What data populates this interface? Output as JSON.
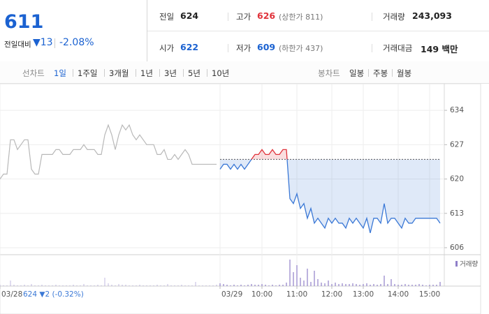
{
  "header": {
    "price": "611",
    "change_label": "전일대비",
    "change": "▼13",
    "change_pct": "-2.08%",
    "color": "#1b62d1",
    "stats": [
      {
        "label": "전일",
        "value": "624"
      },
      {
        "label": "고가",
        "value": "626",
        "note": "(상한가 811)",
        "color": "#e0323a"
      },
      {
        "label": "거래량",
        "value": "243,093"
      },
      {
        "label": "시가",
        "value": "622",
        "color": "#1b62d1"
      },
      {
        "label": "저가",
        "value": "609",
        "note": "(하한가 437)",
        "color": "#1b62d1"
      },
      {
        "label": "거래대금",
        "value": "149 백만"
      }
    ]
  },
  "line_tabs": {
    "label": "선차트",
    "items": [
      "1일",
      "1주일",
      "3개월",
      "1년",
      "3년",
      "5년",
      "10년"
    ],
    "selected_index": 0
  },
  "candle_tabs": {
    "label": "봉차트",
    "items": [
      "일봉",
      "주봉",
      "월봉"
    ]
  },
  "chart_data": {
    "type": "line",
    "note": "624 ▼2 (-0.32%)",
    "xlim": [
      0,
      126
    ],
    "xticks": [
      {
        "value": 0,
        "label": "03/28"
      },
      {
        "value": 63,
        "label": "03/29"
      },
      {
        "value": 75,
        "label": "10:00"
      },
      {
        "value": 85,
        "label": "11:00"
      },
      {
        "value": 95,
        "label": "12:00"
      },
      {
        "value": 104,
        "label": "13:00"
      },
      {
        "value": 114,
        "label": "14:00"
      },
      {
        "value": 123,
        "label": "15:00"
      }
    ],
    "ylim": [
      605,
      638
    ],
    "yticks": [
      606,
      613,
      620,
      627,
      634
    ],
    "grid": true,
    "baseline": 624,
    "series": [
      {
        "color": "#b8b8b8",
        "values": [
          620,
          621,
          621,
          628,
          628,
          626,
          627,
          628,
          628,
          622,
          621,
          621,
          625,
          625,
          625,
          625,
          626,
          626,
          625,
          625,
          625,
          626,
          626,
          626,
          627,
          626,
          626,
          626,
          625,
          625,
          629,
          631,
          629,
          626,
          629,
          631,
          630,
          631,
          629,
          628,
          629,
          628,
          627,
          627,
          627,
          625,
          625,
          626,
          624,
          624,
          625,
          624,
          625,
          626,
          625,
          623,
          623,
          623,
          623,
          623,
          623,
          623,
          623,
          null,
          null,
          null,
          null,
          null,
          null,
          null,
          null,
          null,
          null,
          null,
          null,
          null,
          null,
          null,
          null,
          null,
          null,
          null,
          null,
          null,
          null,
          null,
          null,
          null,
          null,
          null,
          null,
          null,
          null,
          null,
          null,
          null,
          null,
          null,
          null,
          null,
          null,
          null,
          null,
          null,
          null,
          null,
          null,
          null,
          null,
          null,
          null,
          null,
          null,
          null,
          null,
          null,
          null,
          null,
          null,
          null,
          null,
          null,
          null,
          null,
          null,
          null,
          null,
          null,
          null
        ]
      },
      {
        "color": "#3a78d6",
        "up_color": "#e0323a",
        "values": [
          null,
          null,
          null,
          null,
          null,
          null,
          null,
          null,
          null,
          null,
          null,
          null,
          null,
          null,
          null,
          null,
          null,
          null,
          null,
          null,
          null,
          null,
          null,
          null,
          null,
          null,
          null,
          null,
          null,
          null,
          null,
          null,
          null,
          null,
          null,
          null,
          null,
          null,
          null,
          null,
          null,
          null,
          null,
          null,
          null,
          null,
          null,
          null,
          null,
          null,
          null,
          null,
          null,
          null,
          null,
          null,
          null,
          null,
          null,
          null,
          null,
          null,
          null,
          622,
          623,
          623,
          622,
          623,
          622,
          623,
          622,
          623,
          624,
          625,
          625,
          626,
          625,
          625,
          626,
          625,
          625,
          626,
          626,
          616,
          615,
          617,
          614,
          615,
          612,
          614,
          611,
          612,
          611,
          610,
          612,
          611,
          612,
          611,
          611,
          610,
          612,
          611,
          612,
          611,
          610,
          612,
          609,
          612,
          612,
          611,
          615,
          611,
          612,
          612,
          611,
          610,
          612,
          611,
          611,
          612,
          612,
          612,
          612,
          612,
          612,
          612,
          611
        ]
      }
    ],
    "volume": {
      "label": "거래량",
      "color": "#8f7fc9",
      "ylim": [
        0,
        40
      ],
      "values": [
        2,
        1,
        1,
        8,
        2,
        1,
        1,
        2,
        1,
        3,
        1,
        1,
        2,
        1,
        1,
        1,
        2,
        1,
        1,
        1,
        1,
        2,
        1,
        1,
        3,
        1,
        1,
        1,
        2,
        1,
        12,
        4,
        2,
        1,
        3,
        2,
        2,
        1,
        1,
        1,
        2,
        1,
        1,
        1,
        1,
        2,
        1,
        1,
        3,
        1,
        1,
        1,
        2,
        1,
        1,
        1,
        6,
        1,
        1,
        1,
        1,
        1,
        2,
        4,
        3,
        2,
        1,
        2,
        1,
        2,
        1,
        2,
        3,
        2,
        2,
        3,
        2,
        1,
        2,
        1,
        2,
        2,
        5,
        38,
        20,
        30,
        12,
        8,
        25,
        6,
        22,
        10,
        5,
        4,
        8,
        3,
        5,
        3,
        4,
        3,
        3,
        4,
        3,
        2,
        3,
        4,
        2,
        3,
        2,
        3,
        15,
        3,
        10,
        3,
        2,
        2,
        3,
        2,
        2,
        2,
        3,
        2,
        1,
        2,
        2,
        2,
        6
      ]
    }
  }
}
